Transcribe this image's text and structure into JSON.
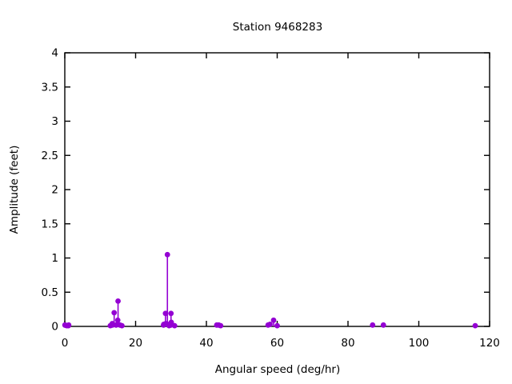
{
  "page": {
    "background": "#ffffff"
  },
  "chart_data": {
    "type": "scatter",
    "style": "impulses+points",
    "title": "Station 9468283",
    "xlabel": "Angular speed (deg/hr)",
    "ylabel": "Amplitude (feet)",
    "xlim": [
      0,
      120
    ],
    "ylim": [
      0,
      4
    ],
    "xticks": [
      0,
      20,
      40,
      60,
      80,
      100,
      120
    ],
    "yticks": [
      0,
      0.5,
      1,
      1.5,
      2,
      2.5,
      3,
      3.5,
      4
    ],
    "grid": false,
    "legend": "none",
    "tick_mirror": true,
    "marker_color": "#9400d3",
    "frame_color": "#000000",
    "points": [
      [
        0.041,
        0.02
      ],
      [
        0.082,
        0.02
      ],
      [
        0.544,
        0.01
      ],
      [
        1.016,
        0.01
      ],
      [
        1.098,
        0.02
      ],
      [
        12.854,
        0.01
      ],
      [
        13.399,
        0.04
      ],
      [
        13.471,
        0.02
      ],
      [
        13.943,
        0.2
      ],
      [
        14.497,
        0.02
      ],
      [
        14.959,
        0.09
      ],
      [
        15.041,
        0.37
      ],
      [
        15.585,
        0.02
      ],
      [
        16.139,
        0.01
      ],
      [
        27.895,
        0.02
      ],
      [
        27.968,
        0.03
      ],
      [
        28.439,
        0.19
      ],
      [
        28.512,
        0.04
      ],
      [
        28.984,
        1.05
      ],
      [
        29.456,
        0.01
      ],
      [
        29.528,
        0.03
      ],
      [
        29.959,
        0.02
      ],
      [
        30.0,
        0.19
      ],
      [
        30.082,
        0.06
      ],
      [
        31.016,
        0.01
      ],
      [
        42.927,
        0.02
      ],
      [
        43.476,
        0.02
      ],
      [
        44.025,
        0.01
      ],
      [
        57.424,
        0.02
      ],
      [
        57.968,
        0.03
      ],
      [
        58.984,
        0.09
      ],
      [
        60.0,
        0.01
      ],
      [
        86.952,
        0.02
      ],
      [
        90.0,
        0.02
      ],
      [
        115.936,
        0.01
      ]
    ]
  }
}
